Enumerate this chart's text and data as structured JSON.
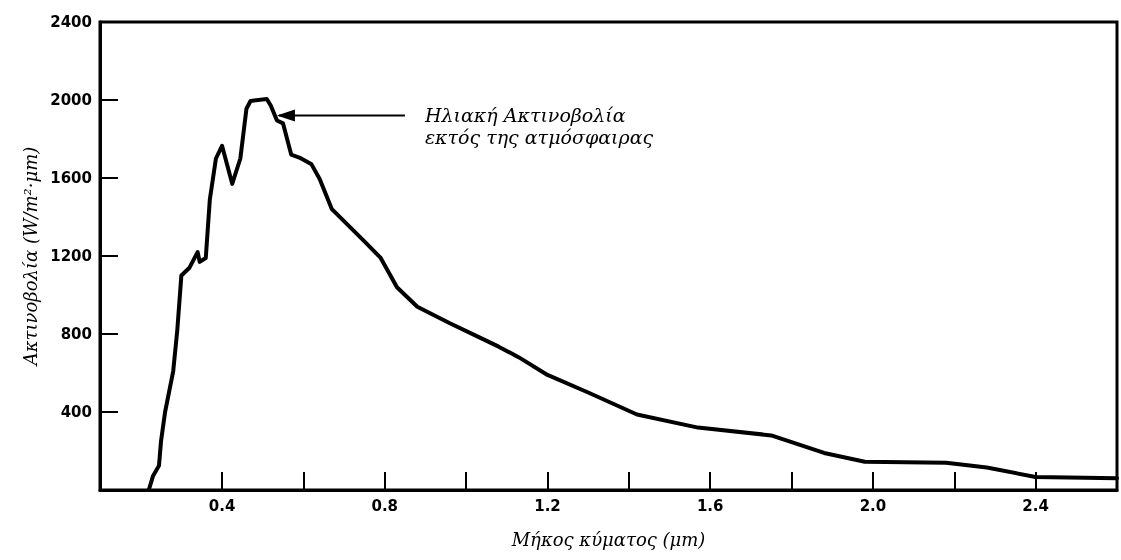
{
  "chart_data": {
    "type": "line",
    "xlabel": "Μήκος κύματος (μm)",
    "ylabel": "Ακτινοβολία (W/m²·μm)",
    "x": [
      0.22,
      0.23,
      0.245,
      0.25,
      0.26,
      0.28,
      0.29,
      0.3,
      0.32,
      0.34,
      0.345,
      0.36,
      0.37,
      0.385,
      0.4,
      0.425,
      0.445,
      0.46,
      0.47,
      0.51,
      0.52,
      0.535,
      0.55,
      0.57,
      0.59,
      0.62,
      0.64,
      0.67,
      0.75,
      0.79,
      0.83,
      0.88,
      0.96,
      1.03,
      1.08,
      1.13,
      1.2,
      1.3,
      1.42,
      1.57,
      1.75,
      1.88,
      1.98,
      2.18,
      2.28,
      2.4,
      2.6
    ],
    "series": [
      {
        "color": "#000000",
        "values": [
          0,
          70,
          125,
          250,
          400,
          610,
          820,
          1100,
          1140,
          1220,
          1170,
          1190,
          1490,
          1700,
          1765,
          1570,
          1700,
          1955,
          1995,
          2005,
          1970,
          1895,
          1880,
          1720,
          1705,
          1670,
          1595,
          1440,
          1275,
          1190,
          1040,
          940,
          855,
          785,
          735,
          680,
          590,
          500,
          387,
          320,
          280,
          190,
          145,
          140,
          115,
          67,
          60
        ]
      }
    ],
    "xlim": [
      0.1,
      2.6
    ],
    "ylim": [
      0,
      2400
    ],
    "xticks": [
      0.4,
      0.8,
      1.2,
      1.6,
      {
        "value": 2.0,
        "label": "2.0"
      },
      2.4
    ],
    "yticks": [
      {
        "value": 0,
        "label": null
      },
      400,
      800,
      1200,
      1600,
      2000,
      2400
    ],
    "grid": false,
    "marker": "none",
    "line_style": "solid",
    "annotations": [
      {
        "text": "Ηλιακή Ακτινοβολία\nεκτός της ατμόσφαιρας",
        "x": 0.53,
        "y": 1920
      }
    ]
  }
}
